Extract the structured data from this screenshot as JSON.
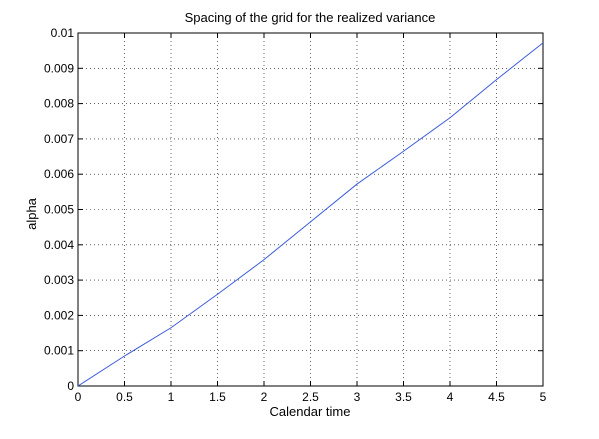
{
  "chart_data": {
    "type": "line",
    "title": "Spacing of the grid for the realized variance",
    "xlabel": "Calendar time",
    "ylabel": "alpha",
    "xlim": [
      0,
      5
    ],
    "ylim": [
      0,
      0.01
    ],
    "xticks": [
      "0",
      "0.5",
      "1",
      "1.5",
      "2",
      "2.5",
      "3",
      "3.5",
      "4",
      "4.5",
      "5"
    ],
    "yticks": [
      "0",
      "0.001",
      "0.002",
      "0.003",
      "0.004",
      "0.005",
      "0.006",
      "0.007",
      "0.008",
      "0.009",
      "0.01"
    ],
    "grid": true,
    "series": [
      {
        "color": "#3b5bdb",
        "x": [
          0,
          0.5,
          1,
          1.5,
          2,
          2.5,
          3,
          3.5,
          4,
          4.5,
          5
        ],
        "y": [
          0,
          0.00085,
          0.00165,
          0.0026,
          0.00358,
          0.00465,
          0.00572,
          0.00665,
          0.0076,
          0.00868,
          0.00972
        ]
      }
    ]
  }
}
